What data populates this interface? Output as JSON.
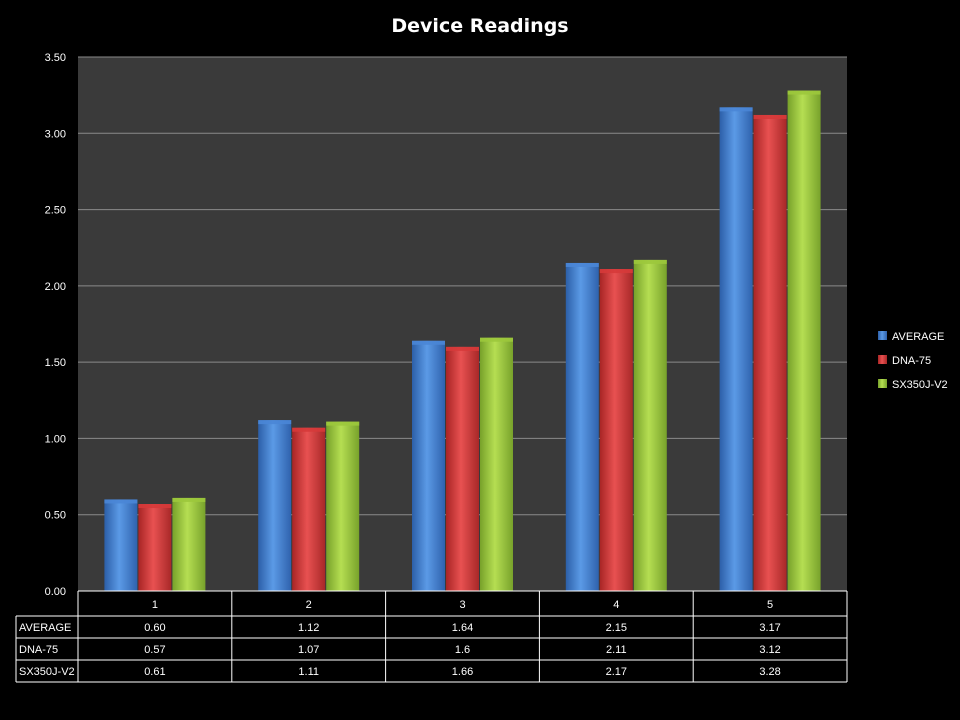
{
  "chart_data": {
    "type": "bar",
    "title": "Device Readings",
    "xlabel": "",
    "ylabel": "",
    "ylim": [
      0,
      3.5
    ],
    "yticks": [
      "0.00",
      "0.50",
      "1.00",
      "1.50",
      "2.00",
      "2.50",
      "3.00",
      "3.50"
    ],
    "grid": true,
    "legend_position": "right",
    "categories": [
      "1",
      "2",
      "3",
      "4",
      "5"
    ],
    "series": [
      {
        "name": "AVERAGE",
        "color": "#4a86d6",
        "values": [
          0.6,
          1.12,
          1.64,
          2.15,
          3.17
        ],
        "labels": [
          "0.60",
          "1.12",
          "1.64",
          "2.15",
          "3.17"
        ]
      },
      {
        "name": "DNA-75",
        "color": "#d63a3a",
        "values": [
          0.57,
          1.07,
          1.6,
          2.11,
          3.12
        ],
        "labels": [
          "0.57",
          "1.07",
          "1.6",
          "2.11",
          "3.12"
        ]
      },
      {
        "name": "SX350J-V2",
        "color": "#9cc83c",
        "values": [
          0.61,
          1.11,
          1.66,
          2.17,
          3.28
        ],
        "labels": [
          "0.61",
          "1.11",
          "1.66",
          "2.17",
          "3.28"
        ]
      }
    ]
  }
}
